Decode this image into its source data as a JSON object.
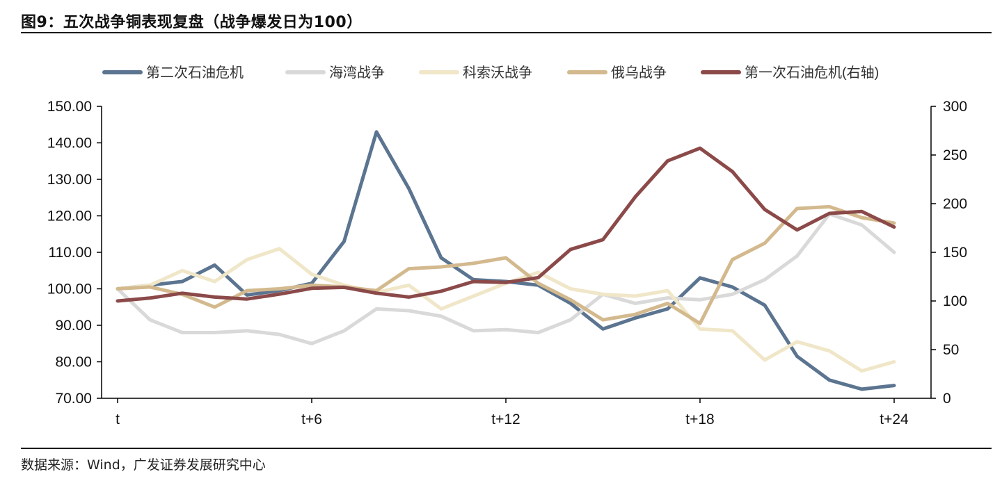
{
  "title": "图9：五次战争铜表现复盘（战争爆发日为100）",
  "source": "数据来源：Wind，广发证券发展研究中心",
  "chart_data": {
    "type": "line",
    "categories_labels": [
      "t",
      "t+6",
      "t+12",
      "t+18",
      "t+24"
    ],
    "x": [
      0,
      1,
      2,
      3,
      4,
      5,
      6,
      7,
      8,
      9,
      10,
      11,
      12,
      13,
      14,
      15,
      16,
      17,
      18,
      19,
      20,
      21,
      22,
      23,
      24
    ],
    "left_axis": {
      "ylim": [
        70,
        150
      ],
      "ticks": [
        "70.00",
        "80.00",
        "90.00",
        "100.00",
        "110.00",
        "120.00",
        "130.00",
        "140.00",
        "150.00"
      ]
    },
    "right_axis": {
      "ylim": [
        0,
        300
      ],
      "ticks": [
        "0",
        "50",
        "100",
        "150",
        "200",
        "250",
        "300"
      ]
    },
    "legend_position": "top",
    "series": [
      {
        "name": "第二次石油危机",
        "axis": "left",
        "color": "#5b7490",
        "values": [
          100,
          101,
          102,
          106.5,
          98.3,
          99.5,
          101.5,
          113,
          143,
          127.5,
          108.5,
          102.5,
          102,
          101,
          96,
          89,
          92,
          94.5,
          103,
          100.5,
          95.5,
          81.5,
          75,
          72.5,
          73.5
        ]
      },
      {
        "name": "海湾战争",
        "axis": "left",
        "color": "#d9d9d9",
        "values": [
          100,
          91.5,
          88,
          88,
          88.5,
          87.5,
          85,
          88.5,
          94.5,
          94,
          92.5,
          88.5,
          88.8,
          88,
          91.5,
          98.5,
          96,
          97.5,
          97,
          98.5,
          102.5,
          109,
          120.5,
          117.5,
          110
        ]
      },
      {
        "name": "科索沃战争",
        "axis": "left",
        "color": "#f0e6c8",
        "values": [
          100,
          101,
          105,
          102,
          108,
          111,
          104,
          101,
          99,
          101,
          94.5,
          98,
          101.5,
          104.5,
          100,
          98.5,
          98,
          99.5,
          89,
          88.5,
          80.5,
          85.5,
          83,
          77.5,
          80
        ]
      },
      {
        "name": "俄乌战争",
        "axis": "left",
        "color": "#d3b98e",
        "values": [
          100,
          100.5,
          98.5,
          95,
          99.5,
          100,
          101,
          100.5,
          99.5,
          105.5,
          106,
          107,
          108.5,
          101.5,
          97,
          91.5,
          93,
          96,
          90.5,
          108,
          112.5,
          122,
          122.5,
          119.5,
          118
        ]
      },
      {
        "name": "第一次石油危机(右轴)",
        "axis": "right",
        "color": "#8b4a49",
        "values": [
          100,
          103,
          108,
          104,
          102,
          107,
          113,
          114,
          108,
          104,
          110,
          120,
          119,
          124,
          153,
          163,
          207,
          244,
          257,
          233,
          194,
          173,
          190,
          192,
          176
        ]
      }
    ]
  }
}
